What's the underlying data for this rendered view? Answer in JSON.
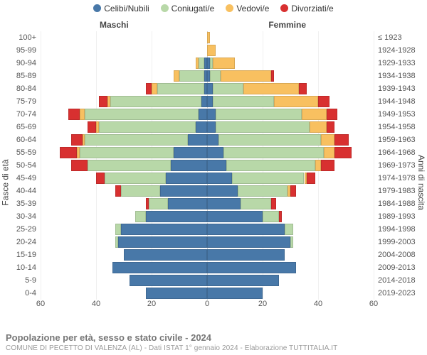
{
  "legend": {
    "items": [
      {
        "label": "Celibi/Nubili",
        "color": "#4878a8"
      },
      {
        "label": "Coniugati/e",
        "color": "#b8d8a8"
      },
      {
        "label": "Vedovi/e",
        "color": "#f8c060"
      },
      {
        "label": "Divorziati/e",
        "color": "#d83030"
      }
    ]
  },
  "headers": {
    "male": "Maschi",
    "female": "Femmine"
  },
  "axis_titles": {
    "left": "Fasce di età",
    "right": "Anni di nascita"
  },
  "x_axis": {
    "max": 60,
    "ticks_left": [
      60,
      40,
      20,
      0
    ],
    "ticks_right": [
      0,
      20,
      40,
      60
    ]
  },
  "colors": {
    "celibi": "#4878a8",
    "coniugati": "#b8d8a8",
    "vedovi": "#f8c060",
    "divorziati": "#d83030",
    "grid": "#ececec",
    "centerline": "#cfcfcf",
    "bg": "#ffffff"
  },
  "style": {
    "row_gap_pct": 8,
    "label_fontsize": 11,
    "legend_fontsize": 12
  },
  "rows": [
    {
      "age": "100+",
      "birth": "≤ 1923",
      "m": [
        0,
        0,
        0,
        0
      ],
      "f": [
        0,
        0,
        1,
        0
      ]
    },
    {
      "age": "95-99",
      "birth": "1924-1928",
      "m": [
        0,
        0,
        0,
        0
      ],
      "f": [
        0,
        0,
        3,
        0
      ]
    },
    {
      "age": "90-94",
      "birth": "1929-1933",
      "m": [
        1,
        2,
        1,
        0
      ],
      "f": [
        1,
        1,
        8,
        0
      ]
    },
    {
      "age": "85-89",
      "birth": "1934-1938",
      "m": [
        1,
        9,
        2,
        0
      ],
      "f": [
        1,
        4,
        18,
        1
      ]
    },
    {
      "age": "80-84",
      "birth": "1939-1943",
      "m": [
        1,
        17,
        2,
        2
      ],
      "f": [
        2,
        11,
        20,
        3
      ]
    },
    {
      "age": "75-79",
      "birth": "1944-1948",
      "m": [
        2,
        33,
        1,
        3
      ],
      "f": [
        2,
        22,
        16,
        4
      ]
    },
    {
      "age": "70-74",
      "birth": "1949-1953",
      "m": [
        3,
        41,
        2,
        4
      ],
      "f": [
        3,
        31,
        9,
        4
      ]
    },
    {
      "age": "65-69",
      "birth": "1954-1958",
      "m": [
        4,
        35,
        1,
        3
      ],
      "f": [
        3,
        34,
        6,
        3
      ]
    },
    {
      "age": "60-64",
      "birth": "1959-1963",
      "m": [
        7,
        37,
        1,
        4
      ],
      "f": [
        4,
        37,
        5,
        5
      ]
    },
    {
      "age": "55-59",
      "birth": "1964-1968",
      "m": [
        12,
        34,
        1,
        6
      ],
      "f": [
        6,
        36,
        4,
        6
      ]
    },
    {
      "age": "50-54",
      "birth": "1969-1973",
      "m": [
        13,
        30,
        0,
        6
      ],
      "f": [
        7,
        32,
        2,
        5
      ]
    },
    {
      "age": "45-49",
      "birth": "1974-1978",
      "m": [
        15,
        22,
        0,
        3
      ],
      "f": [
        9,
        26,
        1,
        3
      ]
    },
    {
      "age": "40-44",
      "birth": "1979-1983",
      "m": [
        17,
        14,
        0,
        2
      ],
      "f": [
        11,
        18,
        1,
        2
      ]
    },
    {
      "age": "35-39",
      "birth": "1984-1988",
      "m": [
        14,
        7,
        0,
        1
      ],
      "f": [
        12,
        11,
        0,
        2
      ]
    },
    {
      "age": "30-34",
      "birth": "1989-1993",
      "m": [
        22,
        4,
        0,
        0
      ],
      "f": [
        20,
        6,
        0,
        1
      ]
    },
    {
      "age": "25-29",
      "birth": "1994-1998",
      "m": [
        31,
        2,
        0,
        0
      ],
      "f": [
        28,
        3,
        0,
        0
      ]
    },
    {
      "age": "20-24",
      "birth": "1999-2003",
      "m": [
        32,
        1,
        0,
        0
      ],
      "f": [
        30,
        1,
        0,
        0
      ]
    },
    {
      "age": "15-19",
      "birth": "2004-2008",
      "m": [
        30,
        0,
        0,
        0
      ],
      "f": [
        28,
        0,
        0,
        0
      ]
    },
    {
      "age": "10-14",
      "birth": "2009-2013",
      "m": [
        34,
        0,
        0,
        0
      ],
      "f": [
        32,
        0,
        0,
        0
      ]
    },
    {
      "age": "5-9",
      "birth": "2014-2018",
      "m": [
        28,
        0,
        0,
        0
      ],
      "f": [
        26,
        0,
        0,
        0
      ]
    },
    {
      "age": "0-4",
      "birth": "2019-2023",
      "m": [
        22,
        0,
        0,
        0
      ],
      "f": [
        20,
        0,
        0,
        0
      ]
    }
  ],
  "footer": {
    "title": "Popolazione per età, sesso e stato civile - 2024",
    "subtitle": "COMUNE DI PECETTO DI VALENZA (AL) - Dati ISTAT 1° gennaio 2024 - Elaborazione TUTTITALIA.IT"
  }
}
